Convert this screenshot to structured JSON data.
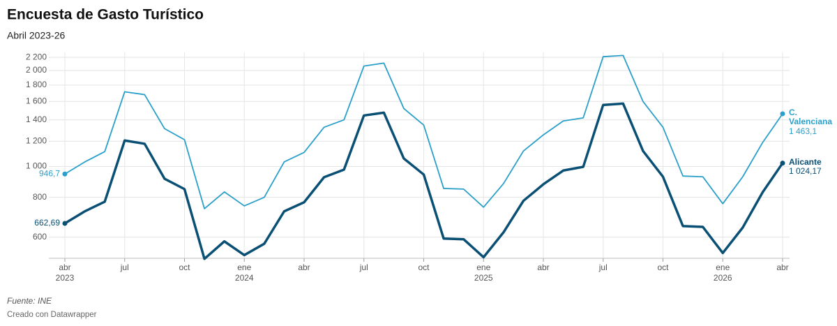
{
  "chart_data": {
    "type": "line",
    "title": "Encuesta de Gasto Turístico",
    "subtitle": "Abril 2023-26",
    "source": "Fuente: INE",
    "credit": "Creado con Datawrapper",
    "yscale": "log",
    "grid": true,
    "ylim": [
      515,
      2280
    ],
    "yticks": [
      600,
      800,
      {
        "value": 1000,
        "label": "1 000"
      },
      {
        "value": 1200,
        "label": "1 200"
      },
      {
        "value": 1400,
        "label": "1 400"
      },
      {
        "value": 1600,
        "label": "1 600"
      },
      {
        "value": 1800,
        "label": "1 800"
      },
      {
        "value": 2000,
        "label": "2 000"
      },
      {
        "value": 2200,
        "label": "2 200"
      }
    ],
    "categories": [
      "abr",
      null,
      null,
      "jul",
      null,
      null,
      "oct",
      null,
      null,
      "ene",
      null,
      null,
      "abr",
      null,
      null,
      "jul",
      null,
      null,
      "oct",
      null,
      null,
      "ene",
      null,
      null,
      "abr",
      null,
      null,
      "jul",
      null,
      null,
      "oct",
      null,
      null,
      "ene",
      null,
      null,
      "abr"
    ],
    "years": [
      "2023",
      null,
      null,
      null,
      null,
      null,
      null,
      null,
      null,
      "2024",
      null,
      null,
      null,
      null,
      null,
      null,
      null,
      null,
      null,
      null,
      null,
      "2025",
      null,
      null,
      null,
      null,
      null,
      null,
      null,
      null,
      null,
      null,
      null,
      "2026",
      null,
      null,
      null
    ],
    "series": [
      {
        "name": "C. Valenciana",
        "color": "#2a9fc9",
        "width": 1.8,
        "values": [
          946.7,
          1033,
          1113,
          1715,
          1680,
          1314,
          1213,
          737,
          832,
          752,
          800,
          1033,
          1107,
          1327,
          1400,
          2065,
          2110,
          1520,
          1348,
          853,
          849,
          745,
          883,
          1118,
          1256,
          1389,
          1420,
          2210,
          2230,
          1598,
          1327,
          933,
          928,
          764,
          928,
          1189,
          1463.1
        ],
        "value_labels": [
          "946,7",
          null,
          null,
          null,
          null,
          null,
          null,
          null,
          null,
          null,
          null,
          null,
          null,
          null,
          null,
          null,
          null,
          null,
          null,
          null,
          null,
          null,
          null,
          null,
          null,
          null,
          null,
          null,
          null,
          null,
          null,
          null,
          null,
          null,
          null,
          null,
          "1 463,1"
        ]
      },
      {
        "name": "Alicante",
        "color": "#0a4f74",
        "width": 3.5,
        "values": [
          662.69,
          723,
          775,
          1206,
          1178,
          915,
          849,
          513,
          582,
          527,
          572,
          723,
          772,
          925,
          977,
          1445,
          1475,
          1059,
          943,
          594,
          591,
          519,
          621,
          780,
          879,
          971,
          997,
          1559,
          1575,
          1118,
          928,
          650,
          646,
          535,
          643,
          830,
          1024.17
        ],
        "value_labels": [
          "662,69",
          null,
          null,
          null,
          null,
          null,
          null,
          null,
          null,
          null,
          null,
          null,
          null,
          null,
          null,
          null,
          null,
          null,
          null,
          null,
          null,
          null,
          null,
          null,
          null,
          null,
          null,
          null,
          null,
          null,
          null,
          null,
          null,
          null,
          null,
          null,
          "1 024,17"
        ]
      }
    ]
  }
}
